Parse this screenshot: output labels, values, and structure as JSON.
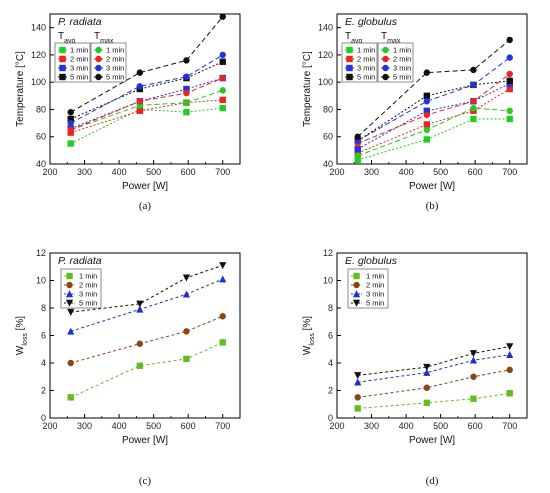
{
  "chart_data": [
    {
      "type": "line",
      "panel_label": "(a)",
      "title": "P. radiata",
      "xlabel": "Power [W]",
      "ylabel": "Temperature [°C]",
      "xlim": [
        200,
        750
      ],
      "ylim": [
        40,
        150
      ],
      "xticks": [
        "200",
        "300",
        "400",
        "500",
        "600",
        "700"
      ],
      "yticks": [
        "40",
        "60",
        "80",
        "100",
        "120",
        "140"
      ],
      "x": [
        260,
        460,
        595,
        700
      ],
      "legend_groups": [
        {
          "label": "T",
          "sub": "avg"
        },
        {
          "label": "T",
          "sub": "max"
        }
      ],
      "series": [
        {
          "name": "1 min",
          "group": 0,
          "color": "#22cc22",
          "marker": "square",
          "values": [
            55,
            80,
            78,
            81
          ]
        },
        {
          "name": "2 min",
          "group": 0,
          "color": "#ee2222",
          "marker": "square",
          "values": [
            63,
            79,
            85,
            87
          ]
        },
        {
          "name": "3 min",
          "group": 0,
          "color": "#2233dd",
          "marker": "square",
          "values": [
            66,
            86,
            95,
            103
          ]
        },
        {
          "name": "5 min",
          "group": 0,
          "color": "#111111",
          "marker": "square",
          "values": [
            73,
            95,
            103,
            115
          ]
        },
        {
          "name": "1 min",
          "group": 1,
          "color": "#22cc22",
          "marker": "circle",
          "values": [
            65,
            83,
            85,
            94
          ]
        },
        {
          "name": "2 min",
          "group": 1,
          "color": "#ee2222",
          "marker": "circle",
          "values": [
            65,
            86,
            92,
            103
          ]
        },
        {
          "name": "3 min",
          "group": 1,
          "color": "#2233dd",
          "marker": "circle",
          "values": [
            70,
            97,
            104,
            120
          ]
        },
        {
          "name": "5 min",
          "group": 1,
          "color": "#111111",
          "marker": "circle",
          "values": [
            78,
            107,
            116,
            148
          ]
        }
      ]
    },
    {
      "type": "line",
      "panel_label": "(b)",
      "title": "E. globulus",
      "xlabel": "Power [W]",
      "ylabel": "Temperature [°C]",
      "xlim": [
        200,
        750
      ],
      "ylim": [
        40,
        150
      ],
      "xticks": [
        "200",
        "300",
        "400",
        "500",
        "600",
        "700"
      ],
      "yticks": [
        "40",
        "60",
        "80",
        "100",
        "120",
        "140"
      ],
      "x": [
        260,
        460,
        595,
        700
      ],
      "legend_groups": [
        {
          "label": "T",
          "sub": "avg"
        },
        {
          "label": "T",
          "sub": "max"
        }
      ],
      "series": [
        {
          "name": "1 min",
          "group": 0,
          "color": "#22cc22",
          "marker": "square",
          "values": [
            43,
            58,
            73,
            73
          ]
        },
        {
          "name": "2 min",
          "group": 0,
          "color": "#ee2222",
          "marker": "square",
          "values": [
            48,
            69,
            79,
            95
          ]
        },
        {
          "name": "3 min",
          "group": 0,
          "color": "#2233dd",
          "marker": "square",
          "values": [
            51,
            79,
            86,
            99
          ]
        },
        {
          "name": "5 min",
          "group": 0,
          "color": "#111111",
          "marker": "square",
          "values": [
            57,
            90,
            98,
            101
          ]
        },
        {
          "name": "1 min",
          "group": 1,
          "color": "#22cc22",
          "marker": "circle",
          "values": [
            46,
            65,
            81,
            79
          ]
        },
        {
          "name": "2 min",
          "group": 1,
          "color": "#ee2222",
          "marker": "circle",
          "values": [
            55,
            76,
            86,
            106
          ]
        },
        {
          "name": "3 min",
          "group": 1,
          "color": "#2233dd",
          "marker": "circle",
          "values": [
            57,
            86,
            98,
            118
          ]
        },
        {
          "name": "5 min",
          "group": 1,
          "color": "#111111",
          "marker": "circle",
          "values": [
            60,
            107,
            109,
            131
          ]
        }
      ]
    },
    {
      "type": "line",
      "panel_label": "(c)",
      "title": "P. radiata",
      "xlabel": "Power [W]",
      "ylabel": "W",
      "ylabel_sub": "loss",
      "ylabel_suffix": " [%]",
      "xlim": [
        200,
        750
      ],
      "ylim": [
        0,
        12
      ],
      "xticks": [
        "200",
        "300",
        "400",
        "500",
        "600",
        "700"
      ],
      "yticks": [
        "0",
        "2",
        "4",
        "6",
        "8",
        "10",
        "12"
      ],
      "x": [
        260,
        460,
        595,
        700
      ],
      "series": [
        {
          "name": "1 min",
          "color": "#66bb22",
          "marker": "square",
          "values": [
            1.5,
            3.8,
            4.3,
            5.5
          ]
        },
        {
          "name": "2 min",
          "color": "#8b4513",
          "marker": "circle",
          "values": [
            4.0,
            5.4,
            6.3,
            7.4
          ]
        },
        {
          "name": "3 min",
          "color": "#1f2fd0",
          "marker": "triangle-up",
          "values": [
            6.3,
            7.9,
            9.0,
            10.1
          ]
        },
        {
          "name": "5 min",
          "color": "#111111",
          "marker": "triangle-down",
          "values": [
            7.7,
            8.3,
            10.2,
            11.1
          ]
        }
      ]
    },
    {
      "type": "line",
      "panel_label": "(d)",
      "title": "E. globulus",
      "xlabel": "Power [W]",
      "ylabel": "W",
      "ylabel_sub": "loss",
      "ylabel_suffix": " [%]",
      "xlim": [
        200,
        750
      ],
      "ylim": [
        0,
        12
      ],
      "xticks": [
        "200",
        "300",
        "400",
        "500",
        "600",
        "700"
      ],
      "yticks": [
        "0",
        "2",
        "4",
        "6",
        "8",
        "10",
        "12"
      ],
      "x": [
        260,
        460,
        595,
        700
      ],
      "series": [
        {
          "name": "1 min",
          "color": "#66bb22",
          "marker": "square",
          "values": [
            0.7,
            1.1,
            1.4,
            1.8
          ]
        },
        {
          "name": "2 min",
          "color": "#8b4513",
          "marker": "circle",
          "values": [
            1.5,
            2.2,
            3.0,
            3.5
          ]
        },
        {
          "name": "3 min",
          "color": "#1f2fd0",
          "marker": "triangle-up",
          "values": [
            2.6,
            3.3,
            4.2,
            4.6
          ]
        },
        {
          "name": "5 min",
          "color": "#111111",
          "marker": "triangle-down",
          "values": [
            3.1,
            3.7,
            4.7,
            5.2
          ]
        }
      ]
    }
  ]
}
